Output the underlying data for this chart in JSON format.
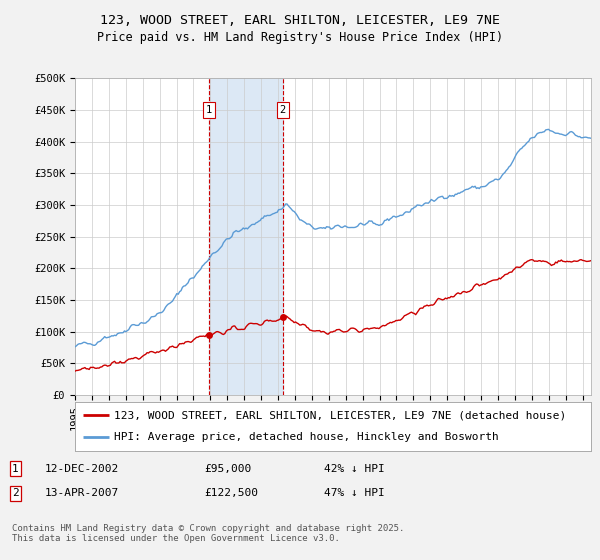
{
  "title1": "123, WOOD STREET, EARL SHILTON, LEICESTER, LE9 7NE",
  "title2": "Price paid vs. HM Land Registry's House Price Index (HPI)",
  "background_color": "#f2f2f2",
  "plot_bg_color": "#ffffff",
  "ylim": [
    0,
    500000
  ],
  "yticks": [
    0,
    50000,
    100000,
    150000,
    200000,
    250000,
    300000,
    350000,
    400000,
    450000,
    500000
  ],
  "ytick_labels": [
    "£0",
    "£50K",
    "£100K",
    "£150K",
    "£200K",
    "£250K",
    "£300K",
    "£350K",
    "£400K",
    "£450K",
    "£500K"
  ],
  "sale1_date": 2002.917,
  "sale1_price": 95000,
  "sale1_label": "1",
  "sale2_date": 2007.286,
  "sale2_price": 122500,
  "sale2_label": "2",
  "legend_line1": "123, WOOD STREET, EARL SHILTON, LEICESTER, LE9 7NE (detached house)",
  "legend_line2": "HPI: Average price, detached house, Hinckley and Bosworth",
  "red_line_color": "#cc0000",
  "blue_line_color": "#5b9bd5",
  "shaded_color": "#dce8f5",
  "copyright_text": "Contains HM Land Registry data © Crown copyright and database right 2025.\nThis data is licensed under the Open Government Licence v3.0.",
  "xlim_start": 1995.0,
  "xlim_end": 2025.5,
  "font_size_title1": 9.5,
  "font_size_title2": 8.5,
  "font_size_ticks": 7.5,
  "font_size_legend": 8.0,
  "font_size_info": 8.0,
  "font_size_copyright": 6.5
}
